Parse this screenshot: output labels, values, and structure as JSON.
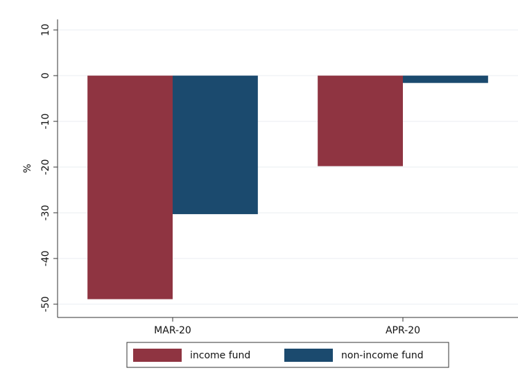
{
  "chart_data": {
    "type": "bar",
    "y_label": "%",
    "categories": [
      "MAR-20",
      "APR-20"
    ],
    "series": [
      {
        "name": "income fund",
        "color": "#8f3441",
        "values": [
          -48.9,
          -19.8
        ]
      },
      {
        "name": "non-income fund",
        "color": "#1b4a6e",
        "values": [
          -30.3,
          -1.6
        ]
      }
    ],
    "ylim": [
      -52.9,
      12.3
    ],
    "yticks": [
      -50,
      -40,
      -30,
      -20,
      -10,
      0,
      10
    ],
    "grid": true,
    "legend": "bottom"
  }
}
